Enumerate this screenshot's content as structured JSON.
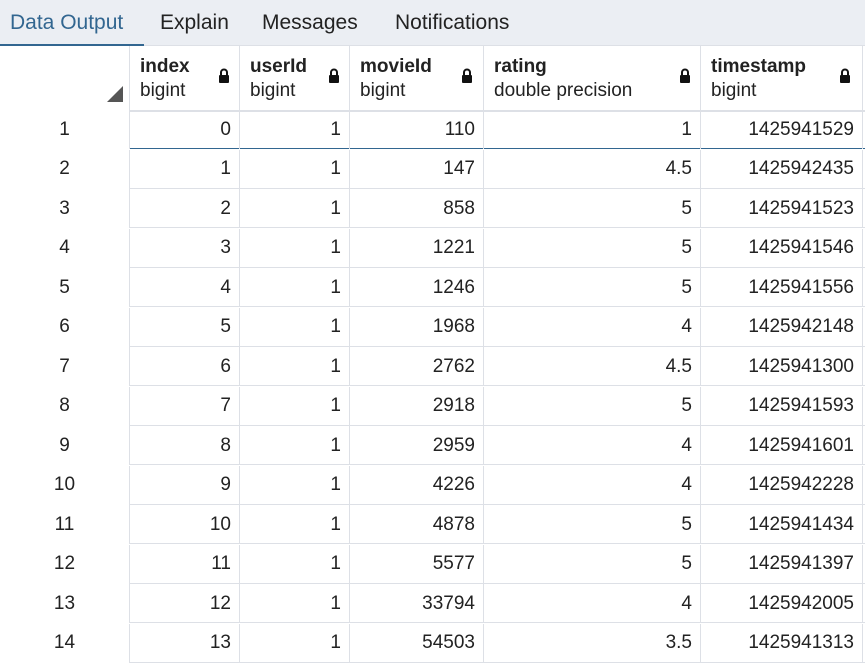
{
  "tabs": [
    {
      "label": "Data Output",
      "active": true
    },
    {
      "label": "Explain",
      "active": false
    },
    {
      "label": "Messages",
      "active": false
    },
    {
      "label": "Notifications",
      "active": false
    }
  ],
  "columns": [
    {
      "name": "index",
      "type": "bigint",
      "locked": true
    },
    {
      "name": "userId",
      "type": "bigint",
      "locked": true
    },
    {
      "name": "movieId",
      "type": "bigint",
      "locked": true
    },
    {
      "name": "rating",
      "type": "double precision",
      "locked": true
    },
    {
      "name": "timestamp",
      "type": "bigint",
      "locked": true
    }
  ],
  "rows": [
    {
      "num": "1",
      "cells": [
        "0",
        "1",
        "110",
        "1",
        "1425941529"
      ]
    },
    {
      "num": "2",
      "cells": [
        "1",
        "1",
        "147",
        "4.5",
        "1425942435"
      ]
    },
    {
      "num": "3",
      "cells": [
        "2",
        "1",
        "858",
        "5",
        "1425941523"
      ]
    },
    {
      "num": "4",
      "cells": [
        "3",
        "1",
        "1221",
        "5",
        "1425941546"
      ]
    },
    {
      "num": "5",
      "cells": [
        "4",
        "1",
        "1246",
        "5",
        "1425941556"
      ]
    },
    {
      "num": "6",
      "cells": [
        "5",
        "1",
        "1968",
        "4",
        "1425942148"
      ]
    },
    {
      "num": "7",
      "cells": [
        "6",
        "1",
        "2762",
        "4.5",
        "1425941300"
      ]
    },
    {
      "num": "8",
      "cells": [
        "7",
        "1",
        "2918",
        "5",
        "1425941593"
      ]
    },
    {
      "num": "9",
      "cells": [
        "8",
        "1",
        "2959",
        "4",
        "1425941601"
      ]
    },
    {
      "num": "10",
      "cells": [
        "9",
        "1",
        "4226",
        "4",
        "1425942228"
      ]
    },
    {
      "num": "11",
      "cells": [
        "10",
        "1",
        "4878",
        "5",
        "1425941434"
      ]
    },
    {
      "num": "12",
      "cells": [
        "11",
        "1",
        "5577",
        "5",
        "1425941397"
      ]
    },
    {
      "num": "13",
      "cells": [
        "12",
        "1",
        "33794",
        "4",
        "1425942005"
      ]
    },
    {
      "num": "14",
      "cells": [
        "13",
        "1",
        "54503",
        "3.5",
        "1425941313"
      ]
    }
  ],
  "colors": {
    "accent": "#326690",
    "tabbar": "#ebeef3",
    "gridline": "#dde0e6"
  }
}
